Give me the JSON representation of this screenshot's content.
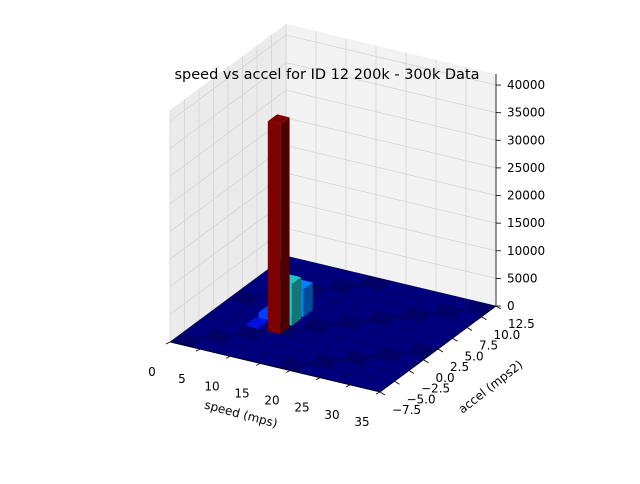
{
  "chart_data": {
    "type": "bar3d",
    "title": "speed vs accel for ID 12 200k - 300k Data",
    "xlabel": "speed (mps)",
    "ylabel": "accel (mps2)",
    "zlabel": "",
    "xlim": [
      0,
      35
    ],
    "ylim": [
      -7.5,
      12.5
    ],
    "zlim": [
      0,
      42000
    ],
    "xticks": [
      "0",
      "5",
      "10",
      "15",
      "20",
      "25",
      "30",
      "35"
    ],
    "yticks": [
      "−7.5",
      "−5.0",
      "−2.5",
      "0.0",
      "2.5",
      "5.0",
      "7.5",
      "10.0",
      "12.5"
    ],
    "zticks": [
      "0",
      "5000",
      "10000",
      "15000",
      "20000",
      "25000",
      "30000",
      "35000",
      "40000"
    ],
    "colormap": "jet",
    "bins": {
      "x_edges": [
        0,
        3.5,
        7,
        10.5,
        14,
        17.5,
        21,
        24.5,
        28,
        31.5,
        35
      ],
      "y_edges": [
        -7.5,
        -5.5,
        -3.5,
        -1.5,
        0.5,
        2.5,
        4.5,
        6.5,
        8.5,
        10.5,
        12.5
      ]
    },
    "bars": [
      {
        "speed": 10.5,
        "accel": -1.5,
        "count": 38000,
        "color": "#7f0000"
      },
      {
        "speed": 10.5,
        "accel": 0.5,
        "count": 7500,
        "color": "#20c4c4"
      },
      {
        "speed": 10.5,
        "accel": 2.5,
        "count": 5000,
        "color": "#0080ff"
      },
      {
        "speed": 7.0,
        "accel": 0.5,
        "count": 900,
        "color": "#0040ff"
      },
      {
        "speed": 7.0,
        "accel": -1.5,
        "count": 400,
        "color": "#0010e0"
      }
    ],
    "floor_color": "#00007f"
  }
}
